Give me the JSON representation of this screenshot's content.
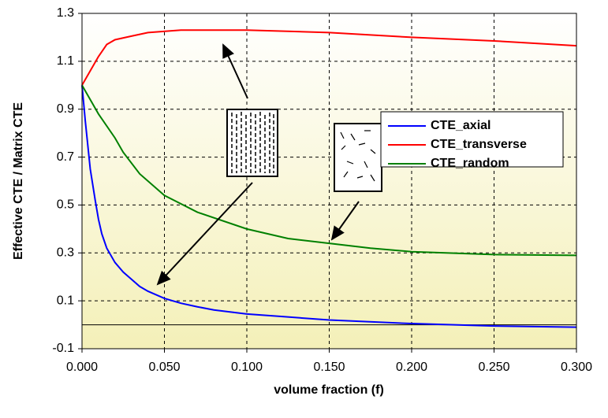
{
  "chart_data": {
    "type": "line",
    "x_label": "volume fraction (f)",
    "y_label": "Effective CTE / Matrix CTE",
    "xlim": [
      0,
      0.3
    ],
    "ylim": [
      -0.1,
      1.3
    ],
    "xticks": [
      {
        "value": 0,
        "label": "0.000"
      },
      {
        "value": 0.05,
        "label": "0.050"
      },
      {
        "value": 0.1,
        "label": "0.100"
      },
      {
        "value": 0.15,
        "label": "0.150"
      },
      {
        "value": 0.2,
        "label": "0.200"
      },
      {
        "value": 0.25,
        "label": "0.250"
      },
      {
        "value": 0.3,
        "label": "0.300"
      }
    ],
    "yticks": [
      -0.1,
      0.1,
      0.3,
      0.5,
      0.7,
      0.9,
      1.1,
      1.3
    ],
    "grid": true,
    "legend": "upper-right",
    "series": [
      {
        "name": "CTE_axial",
        "color": "#0000ff",
        "x": [
          0,
          0.002,
          0.005,
          0.008,
          0.01,
          0.012,
          0.015,
          0.02,
          0.025,
          0.03,
          0.035,
          0.04,
          0.05,
          0.06,
          0.07,
          0.08,
          0.1,
          0.12,
          0.15,
          0.2,
          0.25,
          0.3
        ],
        "values": [
          1.0,
          0.85,
          0.65,
          0.52,
          0.44,
          0.38,
          0.32,
          0.26,
          0.22,
          0.19,
          0.16,
          0.14,
          0.11,
          0.09,
          0.075,
          0.062,
          0.045,
          0.035,
          0.02,
          0.005,
          -0.005,
          -0.01
        ]
      },
      {
        "name": "CTE_transverse",
        "color": "#ff0000",
        "x": [
          0,
          0.005,
          0.01,
          0.015,
          0.02,
          0.03,
          0.04,
          0.06,
          0.1,
          0.15,
          0.2,
          0.25,
          0.3
        ],
        "values": [
          1.0,
          1.06,
          1.12,
          1.17,
          1.19,
          1.205,
          1.22,
          1.23,
          1.23,
          1.22,
          1.2,
          1.185,
          1.165
        ]
      },
      {
        "name": "CTE_random",
        "color": "#008000",
        "x": [
          0,
          0.01,
          0.02,
          0.025,
          0.035,
          0.05,
          0.07,
          0.1,
          0.125,
          0.15,
          0.175,
          0.2,
          0.25,
          0.3
        ],
        "values": [
          1.0,
          0.88,
          0.78,
          0.72,
          0.63,
          0.54,
          0.47,
          0.4,
          0.36,
          0.34,
          0.32,
          0.305,
          0.293,
          0.29
        ]
      }
    ]
  }
}
